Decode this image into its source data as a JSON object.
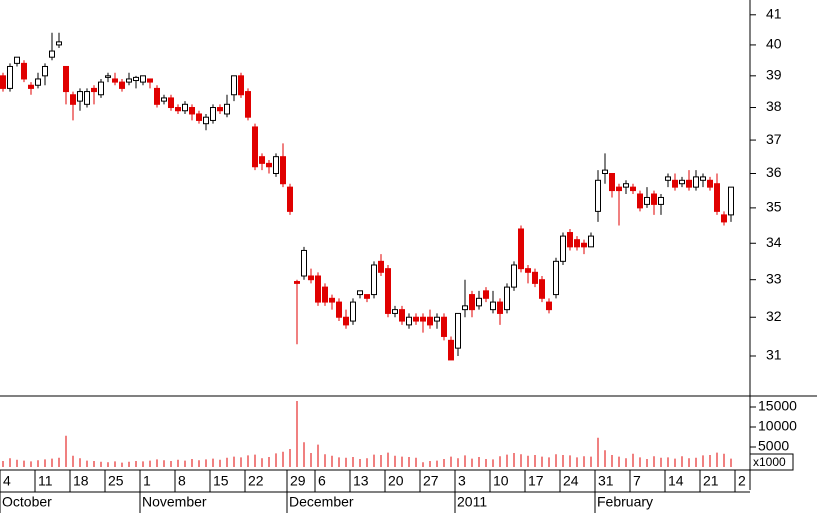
{
  "chart_data": {
    "type": "candlestick",
    "categories": [
      "4",
      null,
      null,
      null,
      null,
      "11",
      null,
      null,
      null,
      null,
      "18",
      null,
      null,
      null,
      null,
      "25",
      null,
      null,
      null,
      null,
      "1",
      null,
      null,
      null,
      null,
      "8",
      null,
      null,
      null,
      null,
      "15",
      null,
      null,
      null,
      null,
      "22",
      null,
      null,
      null,
      null,
      null,
      "29",
      null,
      null,
      null,
      "6",
      null,
      null,
      null,
      null,
      "13",
      null,
      null,
      null,
      null,
      "20",
      null,
      null,
      null,
      null,
      "27",
      null,
      null,
      null,
      null,
      "3",
      null,
      null,
      null,
      null,
      "10",
      null,
      null,
      null,
      null,
      "17",
      null,
      null,
      null,
      null,
      "24",
      null,
      null,
      null,
      null,
      "31",
      null,
      null,
      null,
      null,
      "7",
      null,
      null,
      null,
      null,
      "14",
      null,
      null,
      null,
      null,
      "21",
      null,
      null,
      null,
      null,
      "2"
    ],
    "months": [
      "October",
      "November",
      "December",
      "2011",
      "February"
    ],
    "open": [
      39.0,
      38.6,
      39.4,
      39.4,
      38.7,
      38.7,
      39.0,
      39.6,
      40.0,
      39.3,
      38.4,
      38.2,
      38.1,
      38.6,
      38.4,
      38.95,
      38.9,
      38.8,
      38.8,
      38.85,
      38.8,
      38.9,
      38.6,
      38.2,
      38.3,
      38.0,
      37.9,
      38.0,
      37.8,
      37.5,
      37.6,
      38.0,
      37.8,
      38.4,
      39.0,
      38.5,
      37.4,
      36.5,
      36.3,
      36.0,
      36.5,
      35.6,
      32.95,
      33.1,
      33.1,
      33.1,
      32.8,
      32.5,
      32.4,
      32.0,
      31.9,
      32.6,
      32.6,
      32.6,
      33.5,
      33.3,
      32.1,
      32.2,
      31.8,
      32.0,
      32.0,
      32.0,
      31.9,
      32.0,
      31.4,
      31.2,
      32.2,
      32.6,
      32.3,
      32.7,
      32.2,
      32.4,
      32.2,
      32.8,
      34.4,
      33.3,
      33.2,
      33.0,
      32.4,
      32.6,
      33.5,
      34.3,
      34.1,
      34.0,
      33.9,
      34.9,
      36.0,
      36.0,
      35.6,
      35.6,
      35.6,
      35.4,
      35.1,
      35.4,
      35.1,
      35.8,
      35.8,
      35.7,
      35.8,
      35.6,
      35.8,
      35.8,
      35.7,
      34.8,
      34.8,
      null
    ],
    "high": [
      39.1,
      39.4,
      39.6,
      39.5,
      38.8,
      39.1,
      39.4,
      40.4,
      40.4,
      39.3,
      38.5,
      38.6,
      38.6,
      38.7,
      38.9,
      39.1,
      39.1,
      38.9,
      39.1,
      39.0,
      39.0,
      38.9,
      38.7,
      38.4,
      38.4,
      38.1,
      38.2,
      38.1,
      37.9,
      37.8,
      38.1,
      38.1,
      38.4,
      39.0,
      39.1,
      38.6,
      37.5,
      36.6,
      36.4,
      36.6,
      36.9,
      35.7,
      33.0,
      33.9,
      33.3,
      33.2,
      32.9,
      32.6,
      32.5,
      32.2,
      32.5,
      32.7,
      32.6,
      33.5,
      33.7,
      33.4,
      32.3,
      32.3,
      32.1,
      32.1,
      32.1,
      32.2,
      32.1,
      32.1,
      31.5,
      32.1,
      33.0,
      32.7,
      32.7,
      32.8,
      32.7,
      32.5,
      32.9,
      33.5,
      34.5,
      33.4,
      33.3,
      33.1,
      32.5,
      33.6,
      34.3,
      34.4,
      34.2,
      34.1,
      34.3,
      36.1,
      36.6,
      36.0,
      35.7,
      35.8,
      35.7,
      35.5,
      35.6,
      35.5,
      35.4,
      36.0,
      36.0,
      35.9,
      36.1,
      36.1,
      36.0,
      35.9,
      36.0,
      34.9,
      35.6,
      null
    ],
    "low": [
      38.5,
      38.5,
      39.3,
      38.8,
      38.4,
      38.6,
      38.7,
      39.5,
      39.9,
      38.1,
      37.6,
      37.9,
      38.0,
      38.1,
      38.3,
      38.8,
      38.7,
      38.5,
      38.7,
      38.6,
      38.7,
      38.6,
      38.0,
      38.1,
      37.9,
      37.8,
      37.8,
      37.6,
      37.5,
      37.3,
      37.5,
      37.8,
      37.7,
      38.2,
      38.3,
      37.6,
      36.1,
      36.1,
      36.0,
      35.9,
      35.6,
      34.8,
      31.3,
      33.0,
      32.9,
      32.3,
      32.3,
      32.2,
      31.9,
      31.7,
      31.8,
      32.5,
      32.4,
      32.5,
      33.1,
      32.0,
      32.0,
      31.8,
      31.7,
      31.8,
      31.6,
      31.7,
      31.7,
      31.4,
      30.9,
      31.0,
      32.0,
      32.0,
      32.2,
      32.4,
      32.1,
      31.8,
      32.1,
      32.7,
      33.2,
      32.9,
      32.8,
      32.4,
      32.1,
      32.5,
      33.4,
      33.8,
      33.8,
      33.7,
      33.9,
      34.6,
      35.7,
      35.3,
      34.5,
      35.4,
      35.4,
      34.9,
      35.0,
      34.8,
      34.8,
      35.6,
      35.5,
      35.6,
      35.5,
      35.5,
      35.6,
      35.5,
      34.8,
      34.5,
      34.6,
      null
    ],
    "close": [
      38.6,
      39.3,
      39.6,
      38.9,
      38.6,
      38.9,
      39.3,
      39.8,
      40.1,
      38.5,
      38.1,
      38.5,
      38.5,
      38.5,
      38.8,
      39.0,
      38.8,
      38.6,
      38.9,
      38.95,
      39.0,
      38.8,
      38.1,
      38.3,
      38.0,
      37.9,
      38.1,
      37.8,
      37.6,
      37.7,
      38.0,
      37.9,
      38.1,
      39.0,
      38.4,
      37.7,
      36.2,
      36.3,
      36.2,
      36.5,
      35.7,
      34.9,
      32.9,
      33.8,
      33.0,
      32.4,
      32.4,
      32.4,
      32.0,
      31.8,
      32.4,
      32.7,
      32.5,
      33.4,
      33.2,
      32.1,
      32.2,
      31.9,
      32.0,
      31.9,
      31.9,
      31.8,
      32.0,
      31.5,
      30.9,
      32.1,
      32.3,
      32.2,
      32.5,
      32.5,
      32.4,
      32.1,
      32.8,
      33.4,
      33.3,
      33.2,
      32.9,
      32.5,
      32.2,
      33.5,
      34.2,
      33.9,
      33.9,
      33.9,
      34.2,
      35.8,
      36.1,
      35.5,
      35.5,
      35.7,
      35.5,
      35.0,
      35.3,
      35.1,
      35.3,
      35.9,
      35.6,
      35.8,
      35.6,
      35.9,
      35.9,
      35.6,
      34.9,
      34.6,
      35.6,
      null
    ],
    "up_color": "#ffffff",
    "down_color": "#e00000",
    "ylim": [
      30,
      41.5
    ],
    "yticks": [
      31,
      32,
      33,
      34,
      35,
      36,
      37,
      38,
      39,
      40,
      41
    ],
    "log_scale": true,
    "volume": {
      "values": [
        1500,
        2200,
        1800,
        1600,
        1400,
        1700,
        1900,
        2100,
        2300,
        7800,
        2800,
        2200,
        1600,
        1500,
        1300,
        1200,
        1400,
        1100,
        1300,
        1500,
        1400,
        1600,
        1900,
        1700,
        1500,
        1800,
        1600,
        2000,
        1700,
        1900,
        2100,
        1800,
        2300,
        2600,
        2400,
        2900,
        3100,
        2200,
        2500,
        3400,
        3800,
        4500,
        16500,
        6200,
        3500,
        5600,
        3200,
        2800,
        2400,
        2300,
        2500,
        2000,
        2200,
        3100,
        3000,
        3600,
        2800,
        2600,
        2500,
        2300,
        1200,
        1500,
        1600,
        2000,
        2600,
        2200,
        2900,
        2100,
        2500,
        2000,
        1900,
        2700,
        3100,
        3500,
        3200,
        2800,
        3000,
        2600,
        2400,
        3200,
        3000,
        2900,
        2400,
        2700,
        2600,
        7300,
        4200,
        3000,
        2600,
        2200,
        3300,
        2400,
        2000,
        2700,
        2300,
        2400,
        2100,
        2700,
        2200,
        2300,
        2900,
        3000,
        3600,
        3300,
        2100,
        null
      ],
      "color": "#e00000",
      "ylim": [
        0,
        17500
      ],
      "yticks": [
        5000,
        10000,
        15000
      ],
      "unit_label": "x1000"
    }
  }
}
